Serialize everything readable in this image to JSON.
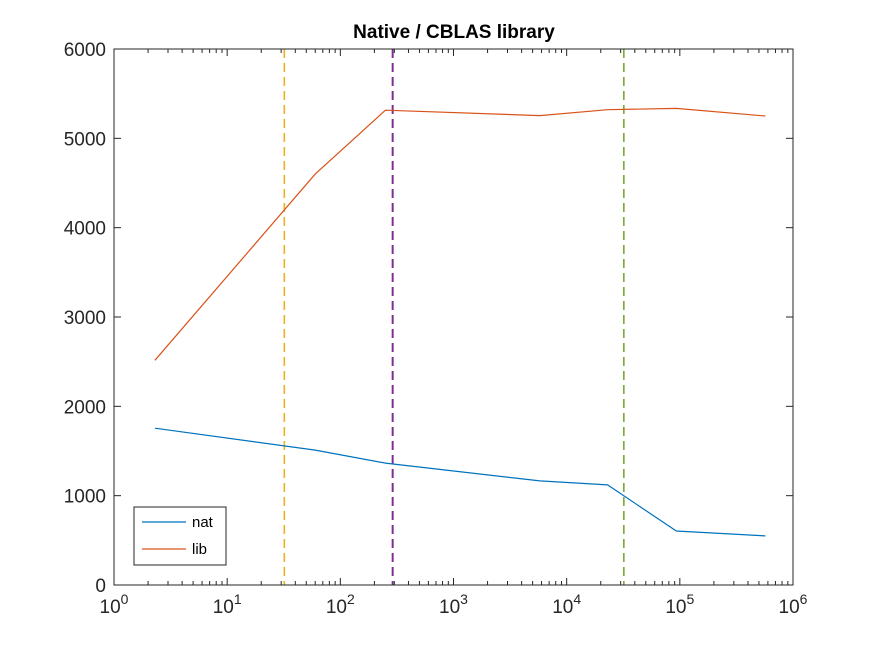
{
  "chart_data": {
    "type": "line",
    "title": "Native / CBLAS library",
    "xlabel": "",
    "ylabel": "",
    "xscale": "log",
    "xlim": [
      1,
      1000000
    ],
    "ylim": [
      0,
      6000
    ],
    "x_tick_exponents": [
      "0",
      "1",
      "2",
      "3",
      "4",
      "5",
      "6"
    ],
    "x_tick_base": "10",
    "y_ticks": [
      0,
      1000,
      2000,
      3000,
      4000,
      5000,
      6000
    ],
    "grid": false,
    "legend": {
      "position": "bottom-left",
      "entries": [
        "nat",
        "lib"
      ]
    },
    "series": [
      {
        "name": "nat",
        "color": "#0072BD",
        "x": [
          2.3,
          60,
          250,
          5800,
          23000,
          93000,
          570000
        ],
        "y": [
          1755,
          1510,
          1365,
          1165,
          1120,
          605,
          550
        ]
      },
      {
        "name": "lib",
        "color": "#D95319",
        "x": [
          2.3,
          60,
          250,
          5800,
          23000,
          93000,
          570000
        ],
        "y": [
          2515,
          4600,
          5315,
          5255,
          5320,
          5335,
          5250
        ]
      }
    ],
    "vertical_lines": [
      {
        "x": 32,
        "color": "#EDB120",
        "style": "dashed"
      },
      {
        "x": 290,
        "color": "#7E2F8E",
        "style": "dashed"
      },
      {
        "x": 32000,
        "color": "#77AC30",
        "style": "dashed"
      }
    ]
  }
}
